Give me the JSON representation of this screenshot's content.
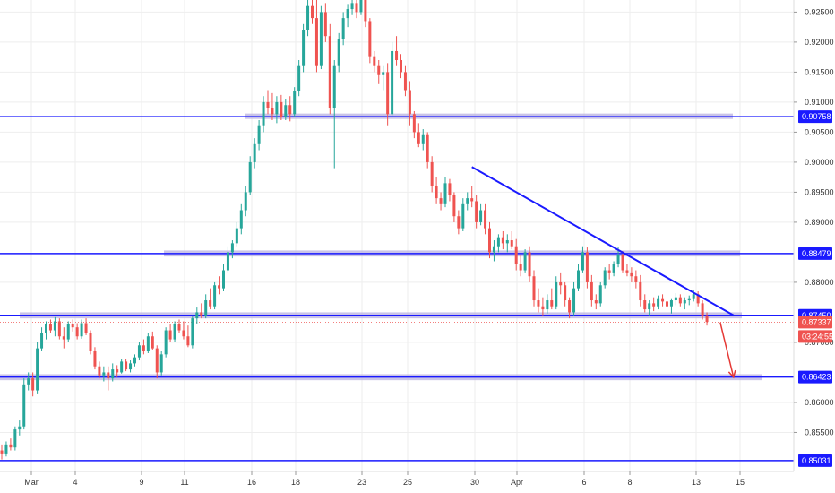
{
  "chart_data": {
    "type": "candlestick",
    "colors": {
      "up": "#26a69a",
      "down": "#ef5350",
      "level_line": "#1a1aff",
      "zone": "#b8b0e0",
      "grid": "#eeeeee",
      "arrow": "#e53935",
      "current_price_badge": "#ef5350"
    },
    "y_axis": {
      "min": 0.8485,
      "max": 0.927,
      "ticks": [
        "0.92500",
        "0.92000",
        "0.91500",
        "0.91000",
        "0.90500",
        "0.90000",
        "0.89500",
        "0.89000",
        "0.88000",
        "0.87000",
        "0.86000",
        "0.85500"
      ]
    },
    "x_axis": {
      "labels": [
        "Mar",
        "4",
        "9",
        "11",
        "16",
        "18",
        "23",
        "25",
        "30",
        "Apr",
        "6",
        "8",
        "13",
        "15"
      ]
    },
    "levels": [
      {
        "price": 0.90758,
        "label": "0.90758"
      },
      {
        "price": 0.88479,
        "label": "0.88479"
      },
      {
        "price": 0.8745,
        "label": "0.87450"
      },
      {
        "price": 0.86423,
        "label": "0.86423"
      },
      {
        "price": 0.85031,
        "label": "0.85031"
      }
    ],
    "zones": [
      {
        "price_top": 0.9081,
        "price_bottom": 0.9072
      },
      {
        "price_top": 0.8853,
        "price_bottom": 0.8843
      },
      {
        "price_top": 0.875,
        "price_bottom": 0.874
      },
      {
        "price_top": 0.8647,
        "price_bottom": 0.8637
      }
    ],
    "current_price": {
      "price": 0.87337,
      "label": "0.87337",
      "countdown": "03:24:55"
    },
    "trendline": {
      "from": {
        "i": 106,
        "price": 0.8992
      },
      "to": {
        "i": 165,
        "price": 0.8745
      }
    },
    "projection_arrow": {
      "from": {
        "i": 162,
        "price": 0.8733
      },
      "to": {
        "i": 165,
        "price": 0.8642
      }
    },
    "candles": [
      [
        0.852,
        0.853,
        0.8505,
        0.8515
      ],
      [
        0.8515,
        0.8535,
        0.851,
        0.853
      ],
      [
        0.853,
        0.854,
        0.852,
        0.8525
      ],
      [
        0.8525,
        0.856,
        0.852,
        0.8555
      ],
      [
        0.8555,
        0.857,
        0.8545,
        0.856
      ],
      [
        0.856,
        0.864,
        0.8555,
        0.863
      ],
      [
        0.863,
        0.865,
        0.862,
        0.864
      ],
      [
        0.864,
        0.865,
        0.861,
        0.862
      ],
      [
        0.862,
        0.87,
        0.8615,
        0.869
      ],
      [
        0.869,
        0.8725,
        0.8685,
        0.8715
      ],
      [
        0.8715,
        0.8735,
        0.8705,
        0.873
      ],
      [
        0.873,
        0.8738,
        0.8715,
        0.872
      ],
      [
        0.872,
        0.8742,
        0.871,
        0.8735
      ],
      [
        0.8735,
        0.874,
        0.8705,
        0.871
      ],
      [
        0.871,
        0.8725,
        0.869,
        0.8705
      ],
      [
        0.8705,
        0.8735,
        0.87,
        0.873
      ],
      [
        0.873,
        0.8738,
        0.8718,
        0.8725
      ],
      [
        0.8725,
        0.8732,
        0.8705,
        0.871
      ],
      [
        0.871,
        0.8738,
        0.8706,
        0.8732
      ],
      [
        0.8732,
        0.874,
        0.8712,
        0.8715
      ],
      [
        0.8715,
        0.872,
        0.868,
        0.8685
      ],
      [
        0.8685,
        0.8692,
        0.8655,
        0.866
      ],
      [
        0.866,
        0.8668,
        0.864,
        0.8645
      ],
      [
        0.8645,
        0.866,
        0.8635,
        0.865
      ],
      [
        0.865,
        0.866,
        0.862,
        0.864
      ],
      [
        0.864,
        0.8665,
        0.8635,
        0.8655
      ],
      [
        0.8655,
        0.8662,
        0.8642,
        0.865
      ],
      [
        0.865,
        0.8672,
        0.8648,
        0.8668
      ],
      [
        0.8668,
        0.8672,
        0.8652,
        0.8655
      ],
      [
        0.8655,
        0.867,
        0.865,
        0.8665
      ],
      [
        0.8665,
        0.868,
        0.866,
        0.8675
      ],
      [
        0.8675,
        0.87,
        0.867,
        0.8695
      ],
      [
        0.8695,
        0.8705,
        0.868,
        0.8685
      ],
      [
        0.8685,
        0.8715,
        0.8682,
        0.871
      ],
      [
        0.871,
        0.8718,
        0.8688,
        0.869
      ],
      [
        0.869,
        0.8695,
        0.864,
        0.865
      ],
      [
        0.865,
        0.8685,
        0.8645,
        0.868
      ],
      [
        0.868,
        0.8725,
        0.8675,
        0.872
      ],
      [
        0.872,
        0.873,
        0.87,
        0.8705
      ],
      [
        0.8705,
        0.8735,
        0.87,
        0.873
      ],
      [
        0.873,
        0.8738,
        0.8715,
        0.872
      ],
      [
        0.872,
        0.8735,
        0.8705,
        0.871
      ],
      [
        0.871,
        0.8728,
        0.8692,
        0.8695
      ],
      [
        0.8695,
        0.8745,
        0.869,
        0.874
      ],
      [
        0.874,
        0.8758,
        0.873,
        0.875
      ],
      [
        0.875,
        0.8765,
        0.874,
        0.8745
      ],
      [
        0.8745,
        0.878,
        0.874,
        0.877
      ],
      [
        0.877,
        0.879,
        0.8755,
        0.876
      ],
      [
        0.876,
        0.88,
        0.8755,
        0.8795
      ],
      [
        0.8795,
        0.881,
        0.878,
        0.879
      ],
      [
        0.879,
        0.883,
        0.8785,
        0.882
      ],
      [
        0.882,
        0.886,
        0.8815,
        0.885
      ],
      [
        0.885,
        0.887,
        0.884,
        0.8865
      ],
      [
        0.8865,
        0.89,
        0.886,
        0.889
      ],
      [
        0.889,
        0.893,
        0.888,
        0.892
      ],
      [
        0.892,
        0.896,
        0.891,
        0.895
      ],
      [
        0.895,
        0.901,
        0.8945,
        0.9
      ],
      [
        0.9,
        0.904,
        0.899,
        0.903
      ],
      [
        0.903,
        0.907,
        0.902,
        0.906
      ],
      [
        0.906,
        0.911,
        0.905,
        0.91
      ],
      [
        0.91,
        0.912,
        0.908,
        0.909
      ],
      [
        0.909,
        0.9115,
        0.907,
        0.908
      ],
      [
        0.908,
        0.911,
        0.9065,
        0.91
      ],
      [
        0.91,
        0.9112,
        0.907,
        0.9075
      ],
      [
        0.9075,
        0.9105,
        0.907,
        0.9095
      ],
      [
        0.9095,
        0.911,
        0.9068,
        0.908
      ],
      [
        0.908,
        0.9125,
        0.9075,
        0.9118
      ],
      [
        0.9118,
        0.917,
        0.911,
        0.916
      ],
      [
        0.916,
        0.923,
        0.915,
        0.922
      ],
      [
        0.922,
        0.9275,
        0.921,
        0.926
      ],
      [
        0.926,
        0.928,
        0.923,
        0.924
      ],
      [
        0.924,
        0.927,
        0.915,
        0.916
      ],
      [
        0.916,
        0.926,
        0.9155,
        0.925
      ],
      [
        0.925,
        0.9265,
        0.92,
        0.921
      ],
      [
        0.921,
        0.923,
        0.908,
        0.909
      ],
      [
        0.909,
        0.917,
        0.899,
        0.916
      ],
      [
        0.916,
        0.9215,
        0.915,
        0.9205
      ],
      [
        0.9205,
        0.925,
        0.9195,
        0.924
      ],
      [
        0.924,
        0.9262,
        0.9225,
        0.9255
      ],
      [
        0.9255,
        0.928,
        0.9245,
        0.9265
      ],
      [
        0.9265,
        0.928,
        0.924,
        0.925
      ],
      [
        0.925,
        0.9275,
        0.9245,
        0.927
      ],
      [
        0.927,
        0.9278,
        0.9225,
        0.9235
      ],
      [
        0.9235,
        0.924,
        0.9165,
        0.9175
      ],
      [
        0.9175,
        0.9185,
        0.915,
        0.916
      ],
      [
        0.916,
        0.917,
        0.913,
        0.9145
      ],
      [
        0.9145,
        0.916,
        0.912,
        0.915
      ],
      [
        0.915,
        0.9165,
        0.906,
        0.908
      ],
      [
        0.908,
        0.92,
        0.9075,
        0.9185
      ],
      [
        0.9185,
        0.921,
        0.916,
        0.917
      ],
      [
        0.917,
        0.918,
        0.914,
        0.915
      ],
      [
        0.915,
        0.916,
        0.911,
        0.912
      ],
      [
        0.912,
        0.9135,
        0.906,
        0.908
      ],
      [
        0.908,
        0.9085,
        0.904,
        0.905
      ],
      [
        0.905,
        0.9065,
        0.9025,
        0.903
      ],
      [
        0.903,
        0.9055,
        0.902,
        0.9045
      ],
      [
        0.9045,
        0.905,
        0.899,
        0.9
      ],
      [
        0.9,
        0.901,
        0.895,
        0.896
      ],
      [
        0.896,
        0.8975,
        0.893,
        0.894
      ],
      [
        0.894,
        0.895,
        0.892,
        0.893
      ],
      [
        0.893,
        0.8975,
        0.8925,
        0.8965
      ],
      [
        0.8965,
        0.8972,
        0.8935,
        0.8945
      ],
      [
        0.8945,
        0.895,
        0.89,
        0.891
      ],
      [
        0.891,
        0.892,
        0.888,
        0.889
      ],
      [
        0.889,
        0.894,
        0.8885,
        0.893
      ],
      [
        0.893,
        0.895,
        0.892,
        0.894
      ],
      [
        0.894,
        0.896,
        0.8925,
        0.8935
      ],
      [
        0.8935,
        0.8945,
        0.889,
        0.89
      ],
      [
        0.89,
        0.893,
        0.8895,
        0.892
      ],
      [
        0.892,
        0.893,
        0.888,
        0.889
      ],
      [
        0.889,
        0.89,
        0.884,
        0.885
      ],
      [
        0.885,
        0.887,
        0.8835,
        0.886
      ],
      [
        0.886,
        0.888,
        0.885,
        0.8875
      ],
      [
        0.8875,
        0.8885,
        0.8855,
        0.8865
      ],
      [
        0.8865,
        0.888,
        0.885,
        0.887
      ],
      [
        0.887,
        0.8885,
        0.8855,
        0.886
      ],
      [
        0.886,
        0.8872,
        0.882,
        0.883
      ],
      [
        0.883,
        0.8845,
        0.881,
        0.882
      ],
      [
        0.882,
        0.8855,
        0.8815,
        0.885
      ],
      [
        0.885,
        0.886,
        0.88,
        0.881
      ],
      [
        0.881,
        0.882,
        0.876,
        0.877
      ],
      [
        0.877,
        0.879,
        0.875,
        0.876
      ],
      [
        0.876,
        0.8775,
        0.8745,
        0.8755
      ],
      [
        0.8755,
        0.878,
        0.8748,
        0.877
      ],
      [
        0.877,
        0.879,
        0.8755,
        0.876
      ],
      [
        0.876,
        0.881,
        0.8755,
        0.88
      ],
      [
        0.88,
        0.8815,
        0.878,
        0.8795
      ],
      [
        0.8795,
        0.88,
        0.876,
        0.877
      ],
      [
        0.877,
        0.8775,
        0.874,
        0.875
      ],
      [
        0.875,
        0.88,
        0.8745,
        0.879
      ],
      [
        0.879,
        0.883,
        0.8785,
        0.882
      ],
      [
        0.882,
        0.886,
        0.8815,
        0.885
      ],
      [
        0.885,
        0.8858,
        0.879,
        0.88
      ],
      [
        0.88,
        0.8812,
        0.876,
        0.877
      ],
      [
        0.877,
        0.878,
        0.8755,
        0.8765
      ],
      [
        0.8765,
        0.88,
        0.876,
        0.8795
      ],
      [
        0.8795,
        0.8825,
        0.879,
        0.882
      ],
      [
        0.882,
        0.883,
        0.8805,
        0.8815
      ],
      [
        0.8815,
        0.8835,
        0.881,
        0.883
      ],
      [
        0.883,
        0.8858,
        0.8825,
        0.8845
      ],
      [
        0.8845,
        0.8852,
        0.8815,
        0.882
      ],
      [
        0.882,
        0.883,
        0.881,
        0.8815
      ],
      [
        0.8815,
        0.8825,
        0.88,
        0.881
      ],
      [
        0.881,
        0.882,
        0.879,
        0.88
      ],
      [
        0.88,
        0.8812,
        0.876,
        0.877
      ],
      [
        0.877,
        0.878,
        0.875,
        0.8755
      ],
      [
        0.8755,
        0.877,
        0.8745,
        0.8765
      ],
      [
        0.8765,
        0.8775,
        0.8752,
        0.876
      ],
      [
        0.876,
        0.8778,
        0.8755,
        0.8772
      ],
      [
        0.8772,
        0.878,
        0.876,
        0.8768
      ],
      [
        0.8768,
        0.8776,
        0.8755,
        0.876
      ],
      [
        0.876,
        0.8772,
        0.8748,
        0.877
      ],
      [
        0.877,
        0.8782,
        0.8762,
        0.8775
      ],
      [
        0.8775,
        0.878,
        0.876,
        0.8765
      ],
      [
        0.8765,
        0.8775,
        0.8755,
        0.877
      ],
      [
        0.877,
        0.8778,
        0.8762,
        0.8772
      ],
      [
        0.8772,
        0.8788,
        0.8768,
        0.878
      ],
      [
        0.878,
        0.8785,
        0.876,
        0.8765
      ],
      [
        0.8765,
        0.877,
        0.8738,
        0.8745
      ],
      [
        0.8745,
        0.875,
        0.8728,
        0.8734
      ]
    ]
  }
}
